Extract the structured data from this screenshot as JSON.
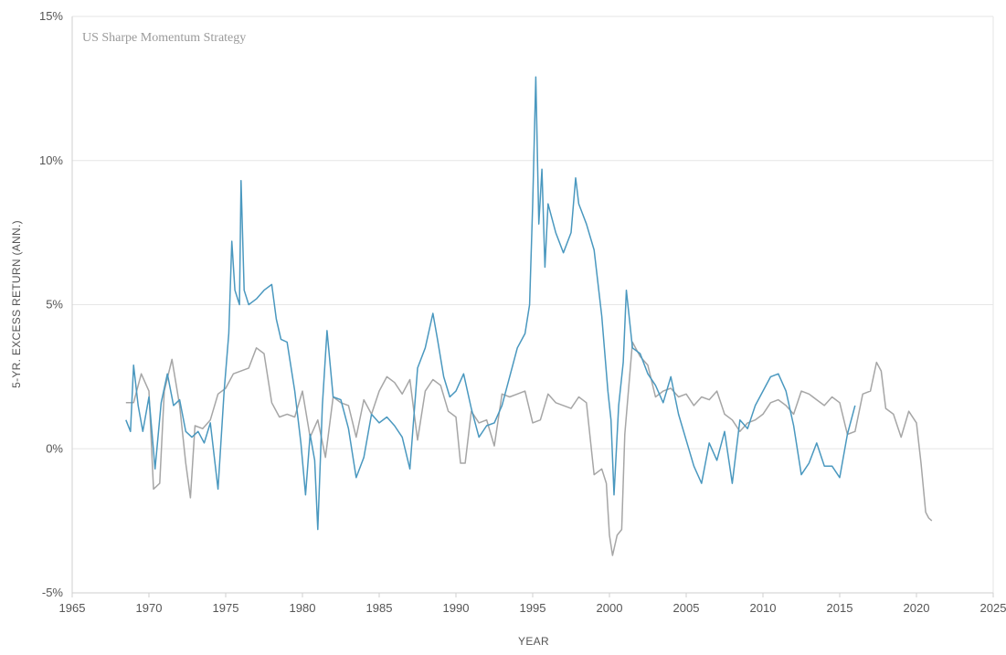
{
  "chart_data": {
    "type": "line",
    "title": "US Sharpe Momentum Strategy",
    "xlabel": "YEAR",
    "ylabel": "5-YR. EXCESS RETURN (ANN.)",
    "xlim": [
      1965,
      2025
    ],
    "ylim": [
      -5,
      15
    ],
    "x_ticks": [
      "1965",
      "1970",
      "1975",
      "1980",
      "1985",
      "1990",
      "1995",
      "2000",
      "2005",
      "2010",
      "2015",
      "2020",
      "2025"
    ],
    "y_ticks": [
      "-5%",
      "0%",
      "5%",
      "10%",
      "15%"
    ],
    "grid": true,
    "colors": {
      "blue": "#4a98bf",
      "gray": "#a6a6a6",
      "grid": "#e6e6e6",
      "axis": "#cfcfcf"
    },
    "series": [
      {
        "color": "#4a98bf",
        "x": [
          1968.5,
          1968.8,
          1969.0,
          1969.3,
          1969.6,
          1970.0,
          1970.4,
          1970.8,
          1971.2,
          1971.6,
          1972.0,
          1972.4,
          1972.8,
          1973.2,
          1973.6,
          1974.0,
          1974.5,
          1974.9,
          1975.2,
          1975.4,
          1975.6,
          1975.9,
          1976.0,
          1976.2,
          1976.5,
          1977.0,
          1977.5,
          1978.0,
          1978.3,
          1978.6,
          1979.0,
          1979.5,
          1979.9,
          1980.2,
          1980.5,
          1980.8,
          1981.0,
          1981.3,
          1981.6,
          1982.0,
          1982.5,
          1983.0,
          1983.5,
          1984.0,
          1984.5,
          1985.0,
          1985.5,
          1986.0,
          1986.5,
          1987.0,
          1987.5,
          1988.0,
          1988.5,
          1988.8,
          1989.2,
          1989.6,
          1990.0,
          1990.5,
          1991.0,
          1991.5,
          1992.0,
          1992.5,
          1993.0,
          1993.5,
          1994.0,
          1994.5,
          1994.8,
          1995.0,
          1995.2,
          1995.4,
          1995.6,
          1995.8,
          1996.0,
          1996.5,
          1997.0,
          1997.5,
          1997.8,
          1998.0,
          1998.5,
          1999.0,
          1999.5,
          1999.9,
          2000.1,
          2000.3,
          2000.6,
          2000.9,
          2001.1,
          2001.5,
          2002.0,
          2002.5,
          2003.0,
          2003.5,
          2004.0,
          2004.5,
          2005.0,
          2005.5,
          2006.0,
          2006.5,
          2007.0,
          2007.5,
          2008.0,
          2008.5,
          2009.0,
          2009.5,
          2010.0,
          2010.5,
          2011.0,
          2011.5,
          2012.0,
          2012.5,
          2013.0,
          2013.5,
          2014.0,
          2014.5,
          2015.0,
          2015.5,
          2016.0
        ],
        "values": [
          1.0,
          0.6,
          2.9,
          1.5,
          0.6,
          1.8,
          -0.7,
          1.6,
          2.6,
          1.5,
          1.7,
          0.6,
          0.4,
          0.6,
          0.2,
          0.9,
          -1.4,
          2.0,
          4.0,
          7.2,
          5.5,
          5.0,
          9.3,
          5.5,
          5.0,
          5.2,
          5.5,
          5.7,
          4.5,
          3.8,
          3.7,
          2.0,
          0.2,
          -1.6,
          0.5,
          -0.4,
          -2.8,
          1.5,
          4.1,
          1.8,
          1.7,
          0.7,
          -1.0,
          -0.3,
          1.2,
          0.9,
          1.1,
          0.8,
          0.4,
          -0.7,
          2.8,
          3.5,
          4.7,
          3.8,
          2.5,
          1.8,
          2.0,
          2.6,
          1.4,
          0.4,
          0.8,
          0.9,
          1.5,
          2.5,
          3.5,
          4.0,
          5.0,
          8.5,
          12.9,
          7.8,
          9.7,
          6.3,
          8.5,
          7.5,
          6.8,
          7.5,
          9.4,
          8.5,
          7.8,
          6.9,
          4.6,
          2.0,
          1.0,
          -1.6,
          1.5,
          3.0,
          5.5,
          3.5,
          3.3,
          2.6,
          2.2,
          1.6,
          2.5,
          1.2,
          0.3,
          -0.6,
          -1.2,
          0.2,
          -0.4,
          0.6,
          -1.2,
          1.0,
          0.7,
          1.5,
          2.0,
          2.5,
          2.6,
          2.0,
          0.8,
          -0.9,
          -0.5,
          0.2,
          -0.6,
          -0.6,
          -1.0,
          0.5,
          1.5
        ]
      },
      {
        "color": "#a6a6a6",
        "x": [
          1968.5,
          1969.0,
          1969.5,
          1970.0,
          1970.3,
          1970.7,
          1971.0,
          1971.5,
          1972.0,
          1972.4,
          1972.7,
          1973.0,
          1973.5,
          1974.0,
          1974.5,
          1975.0,
          1975.5,
          1976.0,
          1976.5,
          1977.0,
          1977.5,
          1978.0,
          1978.5,
          1979.0,
          1979.5,
          1980.0,
          1980.5,
          1981.0,
          1981.5,
          1982.0,
          1982.5,
          1983.0,
          1983.5,
          1984.0,
          1984.5,
          1985.0,
          1985.5,
          1986.0,
          1986.5,
          1987.0,
          1987.5,
          1988.0,
          1988.5,
          1989.0,
          1989.5,
          1990.0,
          1990.3,
          1990.6,
          1991.0,
          1991.5,
          1992.0,
          1992.5,
          1993.0,
          1993.5,
          1994.0,
          1994.5,
          1995.0,
          1995.5,
          1996.0,
          1996.5,
          1997.0,
          1997.5,
          1998.0,
          1998.5,
          1999.0,
          1999.5,
          1999.8,
          2000.0,
          2000.2,
          2000.5,
          2000.8,
          2001.0,
          2001.5,
          2002.0,
          2002.5,
          2003.0,
          2003.5,
          2004.0,
          2004.5,
          2005.0,
          2005.5,
          2006.0,
          2006.5,
          2007.0,
          2007.5,
          2008.0,
          2008.5,
          2009.0,
          2009.5,
          2010.0,
          2010.5,
          2011.0,
          2011.5,
          2012.0,
          2012.5,
          2013.0,
          2013.5,
          2014.0,
          2014.5,
          2015.0,
          2015.5,
          2016.0,
          2016.5,
          2017.0,
          2017.4,
          2017.7,
          2018.0,
          2018.5,
          2019.0,
          2019.5,
          2020.0,
          2020.3,
          2020.6,
          2020.8,
          2021.0
        ],
        "values": [
          1.6,
          1.6,
          2.6,
          2.0,
          -1.4,
          -1.2,
          2.0,
          3.1,
          1.5,
          -0.5,
          -1.7,
          0.8,
          0.7,
          1.0,
          1.9,
          2.1,
          2.6,
          2.7,
          2.8,
          3.5,
          3.3,
          1.6,
          1.1,
          1.2,
          1.1,
          2.0,
          0.4,
          1.0,
          -0.3,
          1.8,
          1.6,
          1.5,
          0.4,
          1.7,
          1.2,
          2.0,
          2.5,
          2.3,
          1.9,
          2.4,
          0.3,
          2.0,
          2.4,
          2.2,
          1.3,
          1.1,
          -0.5,
          -0.5,
          1.3,
          0.9,
          1.0,
          0.1,
          1.9,
          1.8,
          1.9,
          2.0,
          0.9,
          1.0,
          1.9,
          1.6,
          1.5,
          1.4,
          1.8,
          1.6,
          -0.9,
          -0.7,
          -1.2,
          -3.0,
          -3.7,
          -3.0,
          -2.8,
          0.5,
          3.7,
          3.2,
          2.9,
          1.8,
          2.0,
          2.1,
          1.8,
          1.9,
          1.5,
          1.8,
          1.7,
          2.0,
          1.2,
          1.0,
          0.6,
          0.9,
          1.0,
          1.2,
          1.6,
          1.7,
          1.5,
          1.2,
          2.0,
          1.9,
          1.7,
          1.5,
          1.8,
          1.6,
          0.5,
          0.6,
          1.9,
          2.0,
          3.0,
          2.7,
          1.4,
          1.2,
          0.4,
          1.3,
          0.9,
          -0.5,
          -2.2,
          -2.4,
          -2.5
        ]
      }
    ]
  }
}
